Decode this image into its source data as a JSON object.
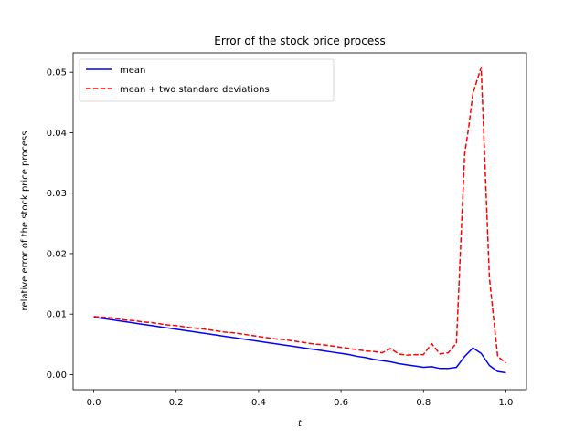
{
  "chart_data": {
    "type": "line",
    "title": "Error of the stock price process",
    "xlabel": "t",
    "ylabel": "relative error of the stock price process",
    "xlim": [
      -0.05,
      1.05
    ],
    "ylim": [
      -0.0025,
      0.0532
    ],
    "xticks": [
      0.0,
      0.2,
      0.4,
      0.6,
      0.8,
      1.0
    ],
    "xtick_labels": [
      "0.0",
      "0.2",
      "0.4",
      "0.6",
      "0.8",
      "1.0"
    ],
    "yticks": [
      0.0,
      0.01,
      0.02,
      0.03,
      0.04,
      0.05
    ],
    "ytick_labels": [
      "0.00",
      "0.01",
      "0.02",
      "0.03",
      "0.04",
      "0.05"
    ],
    "grid": false,
    "legend_position": "top-left",
    "series": [
      {
        "name": "mean",
        "color": "#0000ff",
        "dash": "solid",
        "x": [
          0.0,
          0.02,
          0.04,
          0.06,
          0.08,
          0.1,
          0.12,
          0.14,
          0.16,
          0.18,
          0.2,
          0.22,
          0.24,
          0.26,
          0.28,
          0.3,
          0.32,
          0.34,
          0.36,
          0.38,
          0.4,
          0.42,
          0.44,
          0.46,
          0.48,
          0.5,
          0.52,
          0.54,
          0.56,
          0.58,
          0.6,
          0.62,
          0.64,
          0.66,
          0.68,
          0.7,
          0.72,
          0.74,
          0.76,
          0.78,
          0.8,
          0.82,
          0.84,
          0.86,
          0.88,
          0.9,
          0.92,
          0.94,
          0.96,
          0.98,
          1.0
        ],
        "y": [
          0.0095,
          0.0093,
          0.0091,
          0.0089,
          0.0087,
          0.0085,
          0.0083,
          0.0081,
          0.0079,
          0.0077,
          0.0075,
          0.0073,
          0.0071,
          0.0069,
          0.0067,
          0.0065,
          0.0063,
          0.0061,
          0.0059,
          0.0057,
          0.0055,
          0.0053,
          0.0051,
          0.0049,
          0.0047,
          0.0045,
          0.0043,
          0.0041,
          0.0039,
          0.0037,
          0.0035,
          0.0033,
          0.003,
          0.0028,
          0.0025,
          0.0023,
          0.0021,
          0.0018,
          0.0016,
          0.0014,
          0.0012,
          0.0013,
          0.001,
          0.001,
          0.0012,
          0.003,
          0.0044,
          0.0035,
          0.0015,
          0.0005,
          0.0003
        ]
      },
      {
        "name": "mean + two standard deviations",
        "color": "#ff0000",
        "dash": "dashed",
        "x": [
          0.0,
          0.02,
          0.04,
          0.06,
          0.08,
          0.1,
          0.12,
          0.14,
          0.16,
          0.18,
          0.2,
          0.22,
          0.24,
          0.26,
          0.28,
          0.3,
          0.32,
          0.34,
          0.36,
          0.38,
          0.4,
          0.42,
          0.44,
          0.46,
          0.48,
          0.5,
          0.52,
          0.54,
          0.56,
          0.58,
          0.6,
          0.62,
          0.64,
          0.66,
          0.68,
          0.7,
          0.72,
          0.74,
          0.76,
          0.78,
          0.8,
          0.82,
          0.84,
          0.86,
          0.88,
          0.9,
          0.91,
          0.92,
          0.94,
          0.96,
          0.98,
          1.0
        ],
        "y": [
          0.0096,
          0.0095,
          0.0094,
          0.0092,
          0.009,
          0.0089,
          0.0087,
          0.0086,
          0.0084,
          0.0082,
          0.0081,
          0.0079,
          0.0077,
          0.0076,
          0.0074,
          0.0072,
          0.007,
          0.0069,
          0.0067,
          0.0065,
          0.0063,
          0.0061,
          0.0059,
          0.0058,
          0.0056,
          0.0054,
          0.0052,
          0.005,
          0.0049,
          0.0047,
          0.0045,
          0.0043,
          0.0041,
          0.0039,
          0.0038,
          0.0036,
          0.0043,
          0.0034,
          0.0032,
          0.0033,
          0.0033,
          0.0051,
          0.0034,
          0.0036,
          0.0052,
          0.0365,
          0.041,
          0.0465,
          0.0508,
          0.016,
          0.003,
          0.0019
        ]
      }
    ]
  }
}
